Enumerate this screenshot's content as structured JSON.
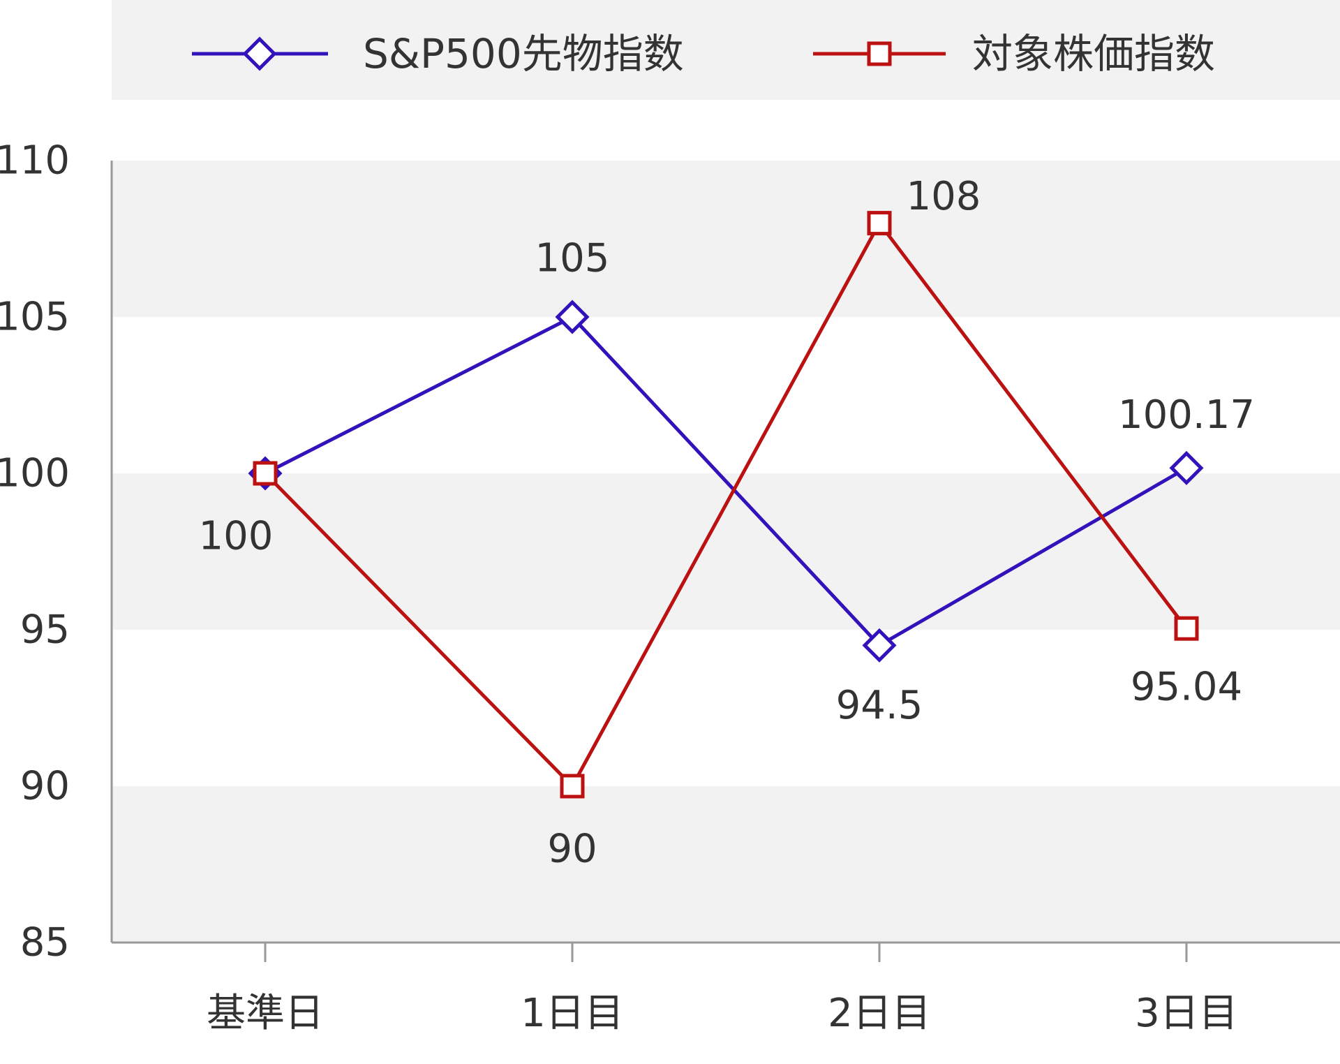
{
  "chart_data": {
    "type": "line",
    "categories": [
      "基準日",
      "1日目",
      "2日目",
      "3日目"
    ],
    "series": [
      {
        "name": "S&P500先物指数",
        "values": [
          100,
          105,
          94.5,
          100.17
        ],
        "labels": [
          "",
          "105",
          "94.5",
          "100.17"
        ],
        "color": "#3311bb",
        "marker": "diamond"
      },
      {
        "name": "対象株価指数",
        "values": [
          100,
          90,
          108,
          95.04
        ],
        "labels": [
          "100",
          "90",
          "108",
          "95.04"
        ],
        "color": "#bb1111",
        "marker": "square"
      }
    ],
    "ylim": [
      85,
      110
    ],
    "yticks": [
      85,
      90,
      95,
      100,
      105,
      110
    ],
    "legend_position": "top",
    "grid": "alternating horizontal bands",
    "band_color": "#f2f2f2",
    "axis_color": "#999999",
    "text_color": "#333333"
  }
}
